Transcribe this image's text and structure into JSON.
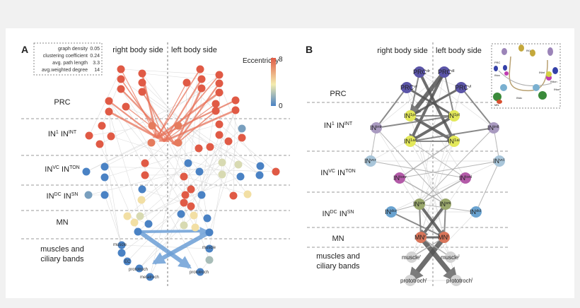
{
  "panel_a": {
    "letter": "A",
    "side_right": "right body side",
    "side_left": "left body side",
    "stats": [
      {
        "label": "graph density",
        "value": "0.05"
      },
      {
        "label": "clustering coefficient",
        "value": "0.24"
      },
      {
        "label": "avg. path length",
        "value": "3.3"
      },
      {
        "label": "avg.weighted degree",
        "value": "14"
      }
    ],
    "colorbar": {
      "title": "Eccentricity",
      "max": "8",
      "min": "0",
      "colors": [
        "#4a82c4",
        "#f4ecae",
        "#e05a45"
      ]
    },
    "rows": [
      {
        "name": "PRC",
        "base": "PRC",
        "sup": ""
      },
      {
        "name": "IN1 ININT",
        "base": "IN",
        "sup": "1",
        "base2": "IN",
        "sup2": "INT"
      },
      {
        "name": "INVC INTON",
        "base": "IN",
        "sup": "VC",
        "base2": "IN",
        "sup2": "TON"
      },
      {
        "name": "INDC INSN",
        "base": "IN",
        "sup": "DC",
        "base2": "IN",
        "sup2": "SN"
      },
      {
        "name": "MN",
        "base": "MN",
        "sup": ""
      },
      {
        "name": "muscles and ciliary bands",
        "line1": "muscles and",
        "line2": "ciliary bands"
      }
    ],
    "node_labels": {
      "muscle_r": "muscle",
      "muscle_l": "muscle",
      "ec": "EC",
      "prototroch_r": "prototroch",
      "prototroch_l": "prototroch",
      "metatroch": "metatroch"
    },
    "eccentricity": [
      8,
      8,
      8,
      8,
      8,
      8,
      8,
      8,
      8,
      8,
      8,
      8,
      8,
      8,
      8,
      8,
      8,
      8,
      8,
      8,
      8,
      8,
      8,
      8,
      7,
      7,
      7,
      7,
      8,
      8,
      1,
      8,
      8,
      8,
      8,
      0,
      0,
      0,
      8,
      8,
      0,
      8,
      0,
      3,
      3,
      0,
      3,
      0,
      0,
      8,
      1,
      0,
      0,
      4,
      8,
      8,
      0,
      8,
      8,
      8,
      4,
      4,
      3,
      4,
      0,
      0,
      4,
      0,
      3,
      4,
      0,
      0,
      0,
      0,
      0,
      0,
      0,
      0,
      2,
      0
    ]
  },
  "panel_b": {
    "letter": "B",
    "side_right": "right body side",
    "side_left": "left body side",
    "rows": [
      {
        "base": "PRC",
        "sup": ""
      },
      {
        "base": "IN",
        "sup": "1",
        "base2": "IN",
        "sup2": "INT"
      },
      {
        "base": "IN",
        "sup": "VC",
        "base2": "IN",
        "sup2": "TON"
      },
      {
        "base": "IN",
        "sup": "DC",
        "base2": "IN",
        "sup2": "SN"
      },
      {
        "base": "MN",
        "sup": ""
      },
      {
        "line1": "muscles and",
        "line2": "ciliary bands"
      }
    ],
    "nodes": [
      {
        "id": "PRCdr",
        "base": "PRC",
        "sup": "dr",
        "color": "#5b55a8"
      },
      {
        "id": "PRCdl",
        "base": "PRC",
        "sup": "dl",
        "color": "#5b55a8"
      },
      {
        "id": "PRCvr",
        "base": "PRC",
        "sup": "vr",
        "color": "#5b55a8"
      },
      {
        "id": "PRCvl",
        "base": "PRC",
        "sup": "vl",
        "color": "#5b55a8"
      },
      {
        "id": "IN1pr",
        "base": "IN",
        "sup": "1pr",
        "color": "#e3e85a"
      },
      {
        "id": "IN1pl",
        "base": "IN",
        "sup": "1pl",
        "color": "#e3e85a"
      },
      {
        "id": "IN1ar",
        "base": "IN",
        "sup": "1ar",
        "color": "#e3e85a"
      },
      {
        "id": "IN1al",
        "base": "IN",
        "sup": "1al",
        "color": "#e3e85a"
      },
      {
        "id": "INintr",
        "base": "IN",
        "sup": "intr",
        "color": "#a99ac0"
      },
      {
        "id": "INintl",
        "base": "IN",
        "sup": "intl",
        "color": "#a99ac0"
      },
      {
        "id": "INvcr",
        "base": "IN",
        "sup": "vcr",
        "color": "#a9c6da"
      },
      {
        "id": "INvcl",
        "base": "IN",
        "sup": "vcl",
        "color": "#a9c6da"
      },
      {
        "id": "INtonr",
        "base": "IN",
        "sup": "tonr",
        "color": "#b35aa8"
      },
      {
        "id": "INtonl",
        "base": "IN",
        "sup": "tonl",
        "color": "#b35aa8"
      },
      {
        "id": "INsnr",
        "base": "IN",
        "sup": "snr",
        "color": "#9aa86c"
      },
      {
        "id": "INsnl",
        "base": "IN",
        "sup": "snl",
        "color": "#9aa86c"
      },
      {
        "id": "INdcr",
        "base": "IN",
        "sup": "dcr",
        "color": "#6aa3d0"
      },
      {
        "id": "INdcl",
        "base": "IN",
        "sup": "dcl",
        "color": "#6aa3d0"
      },
      {
        "id": "MNr",
        "base": "MN",
        "sup": "r",
        "color": "#d9755a"
      },
      {
        "id": "MNl",
        "base": "MN",
        "sup": "l",
        "color": "#d9755a"
      },
      {
        "id": "muscler",
        "base": "muscle",
        "sup": "r",
        "color": "#d4d4d4"
      },
      {
        "id": "musclel",
        "base": "muscle",
        "sup": "l",
        "color": "#d4d4d4"
      },
      {
        "id": "prototrochr",
        "base": "prototroch",
        "sup": "r",
        "color": "#d4d4d4"
      },
      {
        "id": "prototrochl",
        "base": "prototroch",
        "sup": "l",
        "color": "#d4d4d4"
      }
    ],
    "edges": [
      [
        "PRCdl",
        "IN1pr",
        6
      ],
      [
        "PRCdr",
        "IN1al",
        4
      ],
      [
        "PRCdl",
        "IN1ar",
        4
      ],
      [
        "PRCvr",
        "IN1pl",
        3
      ],
      [
        "PRCvl",
        "IN1pr",
        3
      ],
      [
        "PRCdr",
        "IN1pr",
        2
      ],
      [
        "PRCdl",
        "IN1pl",
        2
      ],
      [
        "PRCvr",
        "INintr",
        2
      ],
      [
        "PRCvl",
        "INintl",
        2
      ],
      [
        "IN1pr",
        "IN1al",
        4
      ],
      [
        "IN1pl",
        "IN1ar",
        4
      ],
      [
        "IN1pr",
        "IN1pl",
        2
      ],
      [
        "IN1ar",
        "IN1al",
        2
      ],
      [
        "INintr",
        "IN1pl",
        2
      ],
      [
        "INintl",
        "IN1ar",
        2
      ],
      [
        "IN1al",
        "INtonr",
        1.5
      ],
      [
        "IN1ar",
        "INtonl",
        1
      ],
      [
        "INtonr",
        "INsnl",
        1.5
      ],
      [
        "INtonl",
        "INsnr",
        1.5
      ],
      [
        "INvcr",
        "INtonl",
        1
      ],
      [
        "INvcl",
        "INtonr",
        1
      ],
      [
        "INsnr",
        "MNr",
        2
      ],
      [
        "INsnl",
        "MNl",
        2
      ],
      [
        "INsnr",
        "MNl",
        4
      ],
      [
        "INsnl",
        "MNr",
        4
      ],
      [
        "INdcr",
        "MNl",
        2
      ],
      [
        "INdcl",
        "INsnr",
        1
      ],
      [
        "INdcr",
        "INsnr",
        1
      ],
      [
        "MNr",
        "MNl",
        3
      ],
      [
        "MNr",
        "prototrochl",
        7
      ],
      [
        "MNl",
        "prototrochr",
        7
      ],
      [
        "MNr",
        "musclel",
        1.5
      ],
      [
        "MNl",
        "muscler",
        1.5
      ],
      [
        "INintr",
        "INvcr",
        1
      ],
      [
        "INintl",
        "INvcl",
        1
      ],
      [
        "INvcl",
        "INdcl",
        1
      ],
      [
        "INintr",
        "INsnl",
        1
      ],
      [
        "INintl",
        "INsnr",
        1
      ]
    ],
    "inset": {
      "labels": [
        "IN1",
        "PRC",
        "INvc",
        "INton",
        "INsn",
        "MN",
        "INint",
        "INdc"
      ]
    }
  }
}
